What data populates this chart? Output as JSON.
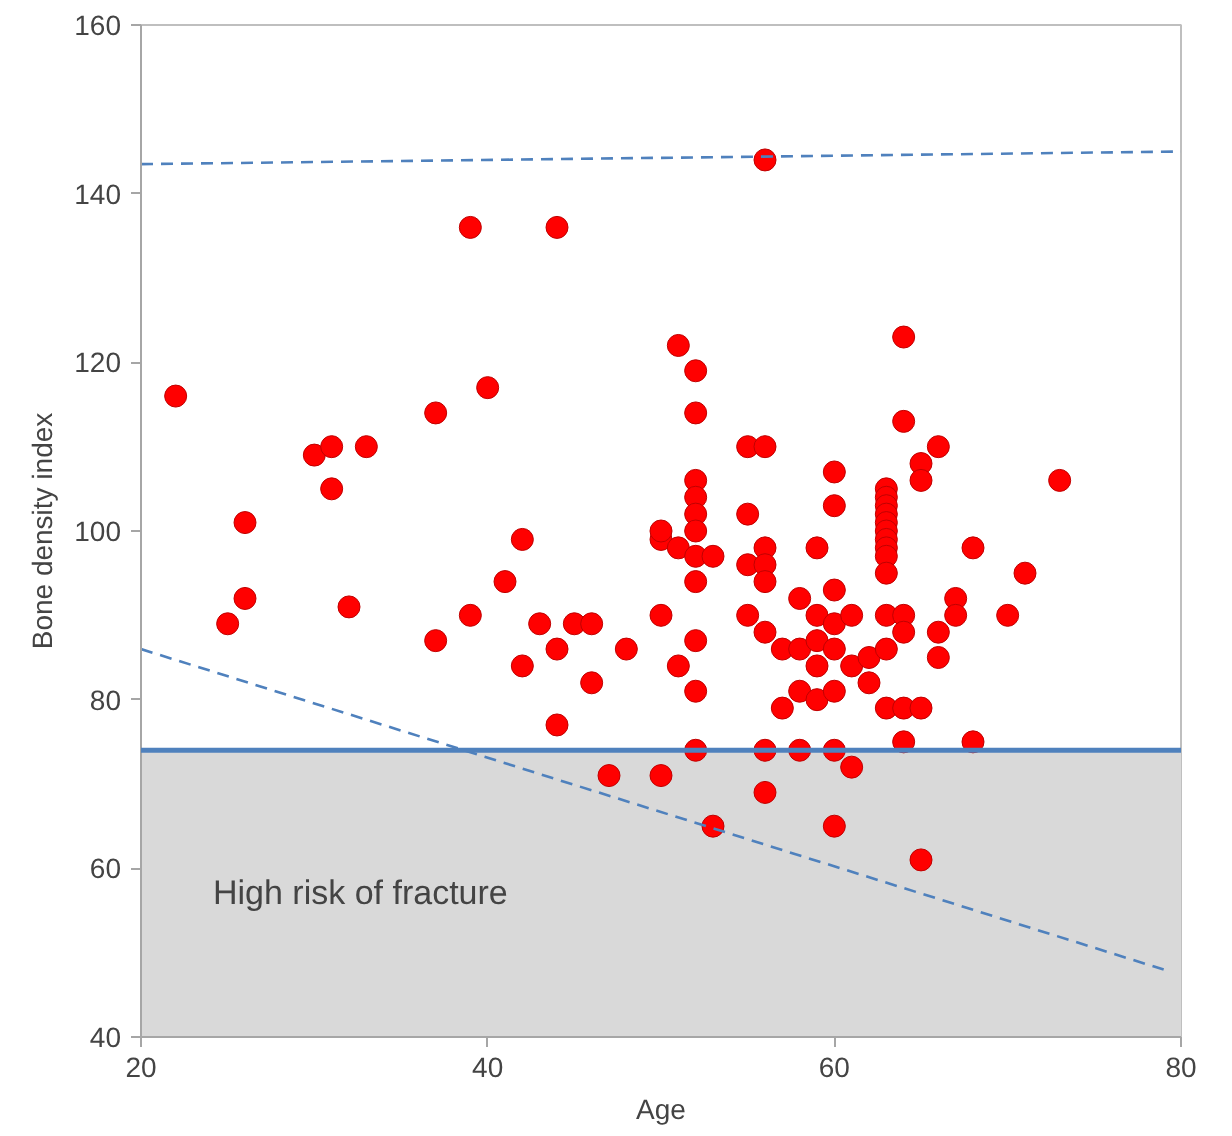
{
  "chart_data": {
    "type": "scatter",
    "xlabel": "Age",
    "ylabel": "Bone density index",
    "xlim": [
      20,
      80
    ],
    "ylim": [
      40,
      160
    ],
    "xticks": [
      20,
      40,
      60,
      80
    ],
    "yticks": [
      40,
      60,
      80,
      100,
      120,
      140,
      160
    ],
    "grid": false,
    "series": [
      {
        "marker": "circle",
        "color": "#ff0000",
        "x": [
          22,
          25,
          26,
          26,
          30,
          31,
          31,
          32,
          33,
          37,
          37,
          39,
          39,
          40,
          41,
          42,
          42,
          43,
          44,
          44,
          44,
          45,
          46,
          46,
          47,
          48,
          50,
          50,
          50,
          50,
          51,
          51,
          51,
          52,
          52,
          52,
          52,
          52,
          52,
          52,
          52,
          52,
          52,
          52,
          53,
          53,
          55,
          55,
          55,
          55,
          56,
          56,
          56,
          56,
          56,
          56,
          56,
          56,
          57,
          57,
          58,
          58,
          58,
          58,
          59,
          59,
          59,
          59,
          59,
          60,
          60,
          60,
          60,
          60,
          60,
          60,
          60,
          61,
          61,
          61,
          62,
          62,
          63,
          63,
          63,
          63,
          63,
          63,
          63,
          63,
          63,
          63,
          63,
          63,
          63,
          64,
          64,
          64,
          64,
          64,
          64,
          65,
          65,
          65,
          65,
          66,
          66,
          66,
          67,
          67,
          68,
          68,
          70,
          71,
          73
        ],
        "values": [
          116,
          89,
          92,
          101,
          109,
          110,
          105,
          91,
          110,
          114,
          87,
          136,
          90,
          117,
          94,
          99,
          84,
          89,
          136,
          86,
          77,
          89,
          82,
          89,
          71,
          86,
          71,
          90,
          99,
          100,
          122,
          98,
          84,
          119,
          114,
          106,
          104,
          102,
          100,
          97,
          94,
          87,
          81,
          74,
          97,
          65,
          110,
          102,
          96,
          90,
          144,
          110,
          98,
          96,
          94,
          88,
          74,
          69,
          86,
          79,
          92,
          86,
          81,
          74,
          98,
          90,
          87,
          84,
          80,
          107,
          103,
          93,
          89,
          86,
          81,
          74,
          65,
          90,
          84,
          72,
          85,
          82,
          105,
          104,
          103,
          102,
          101,
          100,
          99,
          98,
          97,
          95,
          90,
          86,
          79,
          123,
          113,
          90,
          88,
          75,
          79,
          108,
          106,
          79,
          61,
          110,
          88,
          85,
          92,
          90,
          98,
          75,
          90,
          95,
          106
        ]
      },
      {
        "type": "line",
        "line_style": "dashed",
        "color": "#4f81bd",
        "x": [
          20,
          80
        ],
        "values": [
          143.5,
          145
        ]
      },
      {
        "type": "line",
        "line_style": "dashed",
        "color": "#4f81bd",
        "x": [
          20,
          79
        ],
        "values": [
          86,
          48
        ]
      }
    ],
    "ref_lines": [
      {
        "axis": "y",
        "value": 74,
        "color": "#4f81bd",
        "line_style": "solid"
      }
    ],
    "bands": [
      {
        "axis": "y",
        "from": 40,
        "to": 74,
        "color": "#d9d9d9"
      }
    ],
    "annotations": [
      "High risk of fracture"
    ]
  }
}
